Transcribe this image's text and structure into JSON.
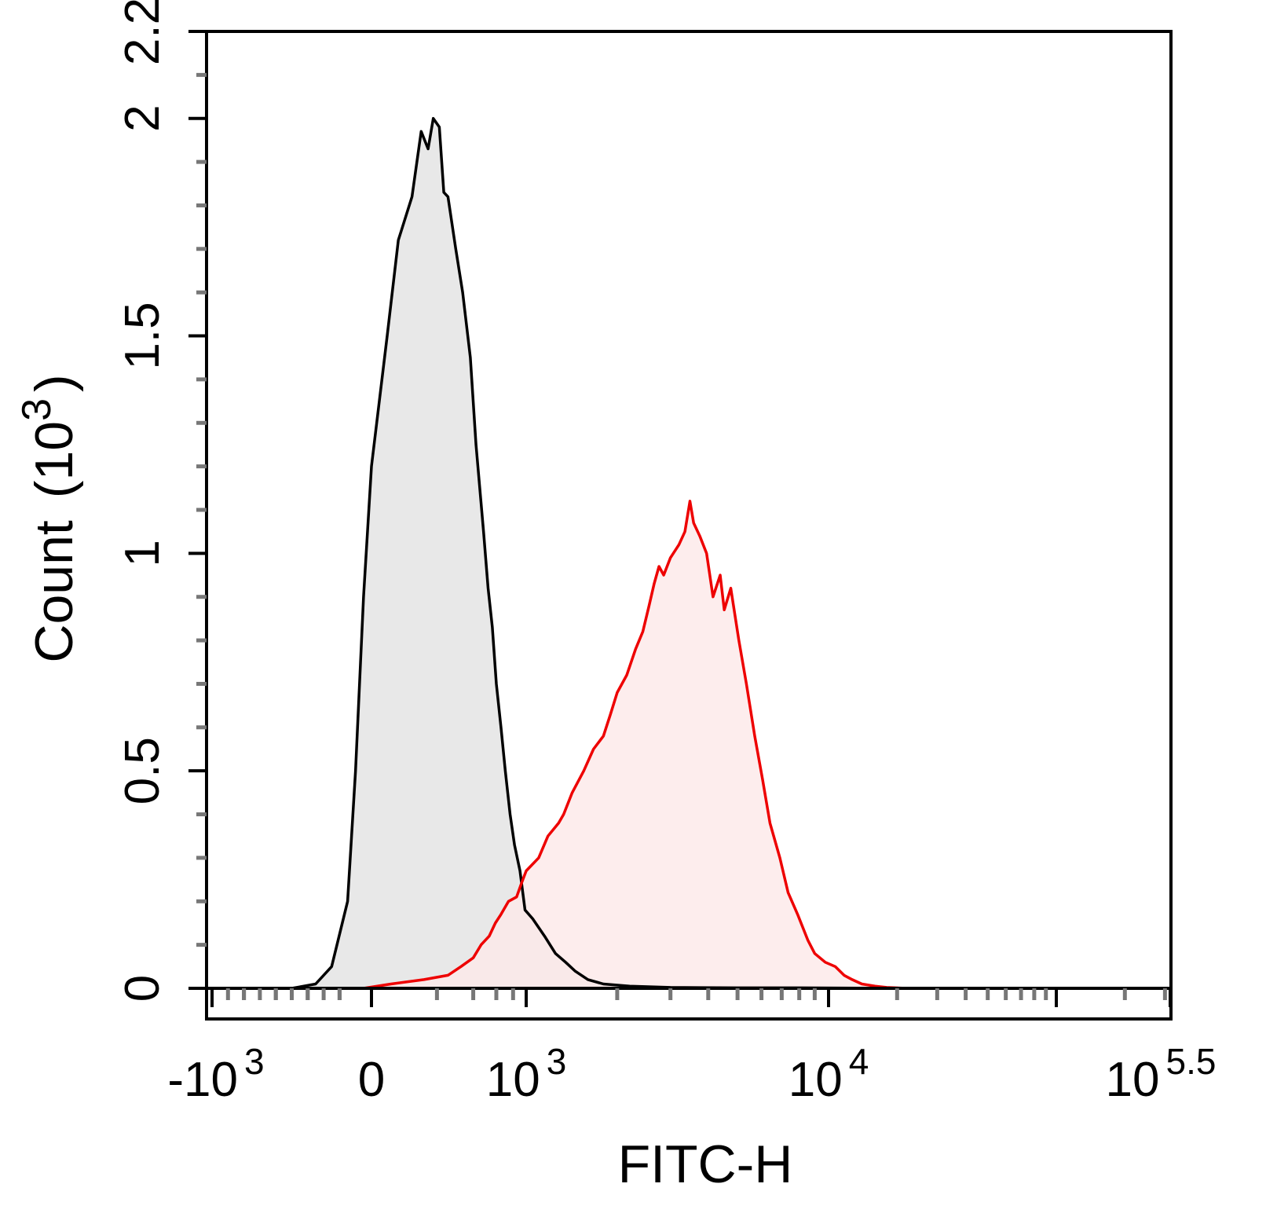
{
  "chart_data": {
    "type": "area",
    "xlabel": "FITC-H",
    "ylabel": "Count",
    "ylabel_unit": "(10",
    "ylabel_unit_exp": "3",
    "ylabel_unit_close": ")",
    "x_scale": "biexponential",
    "xlim": [
      -1000,
      316228
    ],
    "ylim": [
      0,
      2.2
    ],
    "grid": false,
    "legend": "none",
    "x_tick_labels": [
      {
        "value": -1000,
        "base": "-10",
        "exp": "3"
      },
      {
        "value": 0,
        "base": "0",
        "exp": ""
      },
      {
        "value": 1000,
        "base": "10",
        "exp": "3"
      },
      {
        "value": 10000,
        "base": "10",
        "exp": "4"
      },
      {
        "value": 316228,
        "base": "10",
        "exp": "5.5"
      }
    ],
    "y_tick_labels": [
      "0",
      "0.5",
      "1",
      "1.5",
      "2",
      "2.2"
    ],
    "y_ticks": [
      0,
      0.5,
      1,
      1.5,
      2,
      2.2
    ],
    "series": [
      {
        "color": "#000000",
        "fill": "#e8e8e8",
        "points": [
          [
            -500,
            0
          ],
          [
            -350,
            0.01
          ],
          [
            -250,
            0.05
          ],
          [
            -150,
            0.2
          ],
          [
            -100,
            0.5
          ],
          [
            -50,
            0.9
          ],
          [
            0,
            1.2
          ],
          [
            40,
            1.5
          ],
          [
            70,
            1.72
          ],
          [
            110,
            1.82
          ],
          [
            140,
            1.97
          ],
          [
            165,
            1.93
          ],
          [
            185,
            2.0
          ],
          [
            210,
            1.98
          ],
          [
            230,
            1.83
          ],
          [
            250,
            1.82
          ],
          [
            290,
            1.7
          ],
          [
            330,
            1.6
          ],
          [
            380,
            1.45
          ],
          [
            420,
            1.25
          ],
          [
            480,
            1.05
          ],
          [
            520,
            0.92
          ],
          [
            560,
            0.83
          ],
          [
            600,
            0.7
          ],
          [
            650,
            0.6
          ],
          [
            700,
            0.5
          ],
          [
            760,
            0.4
          ],
          [
            820,
            0.33
          ],
          [
            900,
            0.27
          ],
          [
            980,
            0.18
          ],
          [
            1050,
            0.16
          ],
          [
            1150,
            0.12
          ],
          [
            1250,
            0.08
          ],
          [
            1350,
            0.06
          ],
          [
            1450,
            0.04
          ],
          [
            1600,
            0.02
          ],
          [
            1800,
            0.01
          ],
          [
            2200,
            0.005
          ],
          [
            3000,
            0.002
          ],
          [
            5000,
            0.001
          ],
          [
            8000,
            0.001
          ],
          [
            20000,
            0
          ]
        ]
      },
      {
        "color": "#ee0000",
        "fill": "#fde8e8",
        "points": [
          [
            -50,
            0
          ],
          [
            50,
            0.01
          ],
          [
            150,
            0.02
          ],
          [
            250,
            0.03
          ],
          [
            320,
            0.05
          ],
          [
            400,
            0.07
          ],
          [
            460,
            0.1
          ],
          [
            530,
            0.12
          ],
          [
            590,
            0.15
          ],
          [
            650,
            0.17
          ],
          [
            740,
            0.2
          ],
          [
            850,
            0.21
          ],
          [
            920,
            0.24
          ],
          [
            1000,
            0.27
          ],
          [
            1100,
            0.3
          ],
          [
            1180,
            0.35
          ],
          [
            1280,
            0.38
          ],
          [
            1330,
            0.4
          ],
          [
            1420,
            0.45
          ],
          [
            1550,
            0.5
          ],
          [
            1670,
            0.55
          ],
          [
            1800,
            0.58
          ],
          [
            1900,
            0.63
          ],
          [
            2000,
            0.68
          ],
          [
            2150,
            0.72
          ],
          [
            2300,
            0.78
          ],
          [
            2430,
            0.82
          ],
          [
            2550,
            0.88
          ],
          [
            2650,
            0.93
          ],
          [
            2750,
            0.97
          ],
          [
            2850,
            0.95
          ],
          [
            3000,
            0.99
          ],
          [
            3200,
            1.02
          ],
          [
            3350,
            1.05
          ],
          [
            3480,
            1.12
          ],
          [
            3580,
            1.07
          ],
          [
            3750,
            1.04
          ],
          [
            3950,
            1.0
          ],
          [
            4150,
            0.9
          ],
          [
            4380,
            0.95
          ],
          [
            4520,
            0.87
          ],
          [
            4750,
            0.92
          ],
          [
            5050,
            0.8
          ],
          [
            5350,
            0.7
          ],
          [
            5700,
            0.58
          ],
          [
            6050,
            0.48
          ],
          [
            6400,
            0.38
          ],
          [
            6900,
            0.3
          ],
          [
            7350,
            0.22
          ],
          [
            7900,
            0.17
          ],
          [
            8550,
            0.11
          ],
          [
            9000,
            0.08
          ],
          [
            9750,
            0.06
          ],
          [
            10700,
            0.05
          ],
          [
            11700,
            0.03
          ],
          [
            12700,
            0.02
          ],
          [
            14000,
            0.01
          ],
          [
            16000,
            0.005
          ],
          [
            18000,
            0.002
          ],
          [
            22000,
            0.0
          ]
        ]
      }
    ]
  }
}
